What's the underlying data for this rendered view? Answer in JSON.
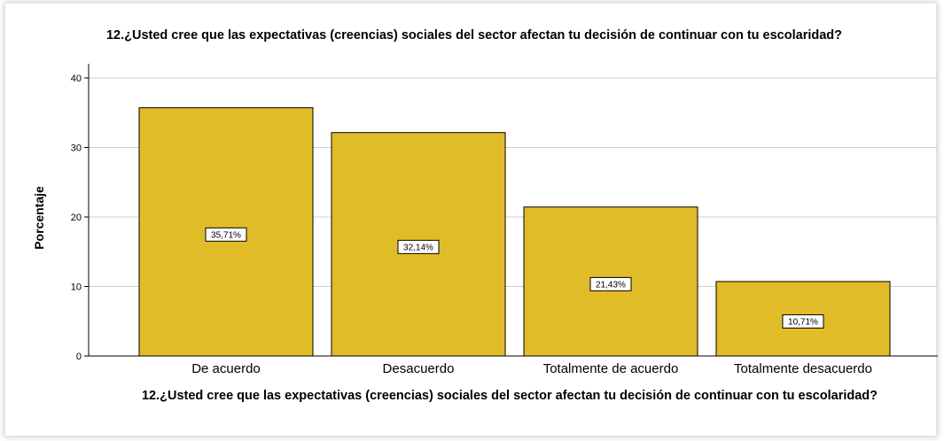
{
  "chart_data": {
    "type": "bar",
    "title": "12.¿Usted cree que las expectativas (creencias) sociales del sector afectan tu decisión de continuar con tu escolaridad?",
    "xlabel": "12.¿Usted cree que las expectativas (creencias) sociales del sector afectan tu decisión de continuar con tu escolaridad?",
    "ylabel": "Porcentaje",
    "categories": [
      "De acuerdo",
      "Desacuerdo",
      "Totalmente de acuerdo",
      "Totalmente desacuerdo"
    ],
    "values": [
      35.71,
      32.14,
      21.43,
      10.71
    ],
    "data_labels": [
      "35,71%",
      "32,14%",
      "21,43%",
      "10,71%"
    ],
    "yticks": [
      0,
      10,
      20,
      30,
      40
    ],
    "ylim": [
      0,
      40
    ],
    "grid": true,
    "bar_color": "#E1BC29",
    "bar_stroke": "#000000",
    "grid_color": "#d0d0d0"
  }
}
